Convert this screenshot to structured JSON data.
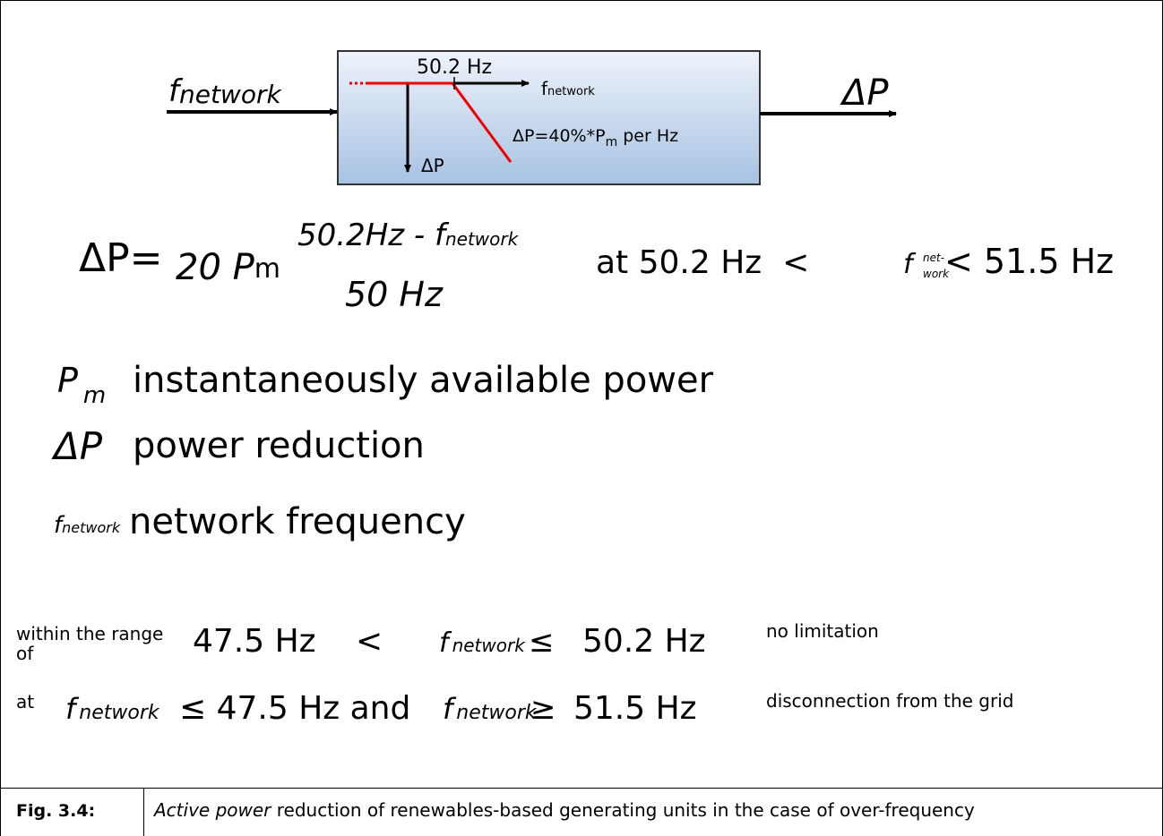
{
  "diagram": {
    "input": {
      "symbol": "f",
      "subscript": "network"
    },
    "output": "ΔP",
    "threshold": "50.2 Hz",
    "x_axis": {
      "symbol": "f",
      "subscript": "network"
    },
    "y_axis": "ΔP",
    "slope": {
      "text": "ΔP=40%*P",
      "subscript": "m",
      "suffix": "per Hz"
    }
  },
  "formula": {
    "lhs": "ΔP=",
    "factor": "20 P",
    "factor_subscript": "m",
    "numerator": "50.2Hz - f",
    "numerator_subscript": "network",
    "denominator": "50 Hz",
    "condition_start": "at 50.2 Hz  <",
    "condition_symbol": "f",
    "condition_subscript_1": "net-",
    "condition_subscript_2": "work",
    "condition_end": "< 51.5 Hz"
  },
  "definitions": [
    {
      "symbol": "P",
      "subscript": "m",
      "text": "instantaneously available power"
    },
    {
      "symbol": "ΔP",
      "text": "power reduction"
    },
    {
      "symbol": "f",
      "subscript": "network",
      "text": "network frequency"
    }
  ],
  "ranges": [
    {
      "intro": "within the range of",
      "lower": "47.5 Hz",
      "op1": "<",
      "symbol": "f",
      "subscript": "network",
      "op2": "≤",
      "upper": "50.2 Hz",
      "result": "no limitation"
    },
    {
      "intro": "at",
      "symbol1": "f",
      "subscript1": "network",
      "middle": "≤ 47.5 Hz and",
      "symbol2": "f",
      "subscript2": "network",
      "op": "≥",
      "upper": "51.5 Hz",
      "result": "disconnection from the grid"
    }
  ],
  "caption": {
    "label": "Fig. 3.4:",
    "emphasis": "Active power",
    "text": "reduction of renewables-based generating units in the case of over-frequency"
  }
}
